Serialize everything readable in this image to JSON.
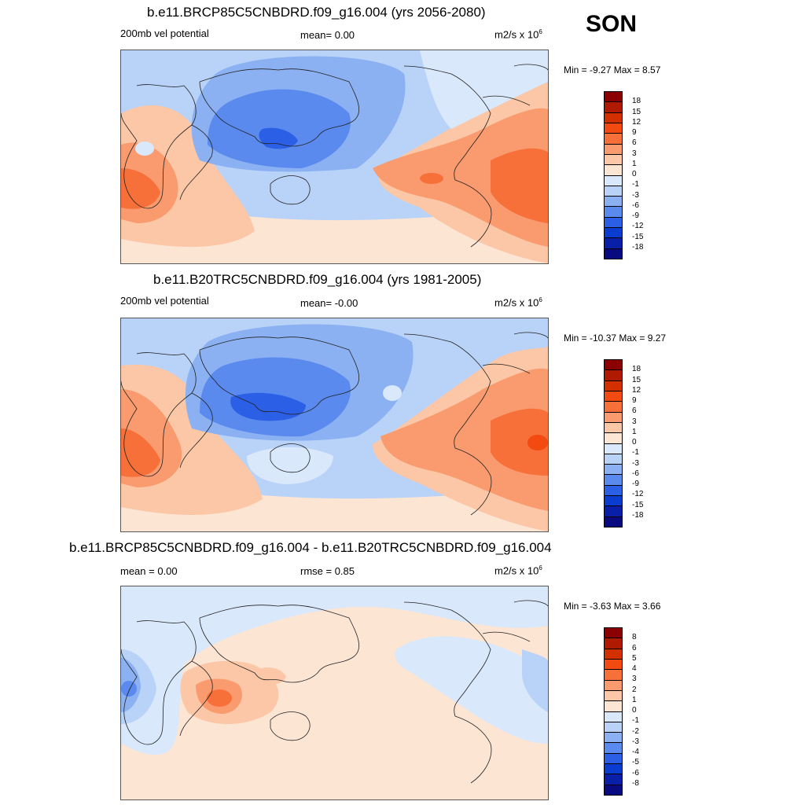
{
  "season": "SON",
  "panels": [
    {
      "title": "b.e11.BRCP85C5CNBDRD.f09_g16.004 (yrs 2056-2080)",
      "left_label": "200mb vel potential",
      "center_label": "mean=   0.00",
      "units": "m2/s x 10",
      "units_exp": "6",
      "minmax": "Min =  -9.27 Max =   8.57",
      "colorbar": [
        "18",
        "15",
        "12",
        "9",
        "6",
        "3",
        "1",
        "0",
        "-1",
        "-3",
        "-6",
        "-9",
        "-12",
        "-15",
        "-18"
      ],
      "colors": [
        "#8b0000",
        "#b01a00",
        "#d33000",
        "#f24a10",
        "#f7703a",
        "#f99b6e",
        "#fbc7a6",
        "#fde5d4",
        "#d9e8fb",
        "#b9d2f8",
        "#8bb1f2",
        "#5a8aee",
        "#2a5fe6",
        "#0a3cd0",
        "#0a1fa8",
        "#0a0a80"
      ]
    },
    {
      "title": "b.e11.B20TRC5CNBDRD.f09_g16.004 (yrs 1981-2005)",
      "left_label": "200mb vel potential",
      "center_label": "mean=  -0.00",
      "units": "m2/s x 10",
      "units_exp": "6",
      "minmax": "Min = -10.37 Max =   9.27",
      "colorbar": [
        "18",
        "15",
        "12",
        "9",
        "6",
        "3",
        "1",
        "0",
        "-1",
        "-3",
        "-6",
        "-9",
        "-12",
        "-15",
        "-18"
      ],
      "colors": [
        "#8b0000",
        "#b01a00",
        "#d33000",
        "#f24a10",
        "#f7703a",
        "#f99b6e",
        "#fbc7a6",
        "#fde5d4",
        "#d9e8fb",
        "#b9d2f8",
        "#8bb1f2",
        "#5a8aee",
        "#2a5fe6",
        "#0a3cd0",
        "#0a1fa8",
        "#0a0a80"
      ]
    },
    {
      "title": "b.e11.BRCP85C5CNBDRD.f09_g16.004 - b.e11.B20TRC5CNBDRD.f09_g16.004",
      "left_label": "mean =   0.00",
      "center_label": "rmse =   0.85",
      "units": "m2/s x 10",
      "units_exp": "6",
      "minmax": "Min =  -3.63 Max =   3.66",
      "colorbar": [
        "8",
        "6",
        "5",
        "4",
        "3",
        "2",
        "1",
        "0",
        "-1",
        "-2",
        "-3",
        "-4",
        "-5",
        "-6",
        "-8"
      ],
      "colors": [
        "#8b0000",
        "#b01a00",
        "#d33000",
        "#f24a10",
        "#f7703a",
        "#f99b6e",
        "#fbc7a6",
        "#fde5d4",
        "#d9e8fb",
        "#b9d2f8",
        "#8bb1f2",
        "#5a8aee",
        "#2a5fe6",
        "#0a3cd0",
        "#0a1fa8",
        "#0a0a80"
      ]
    }
  ]
}
